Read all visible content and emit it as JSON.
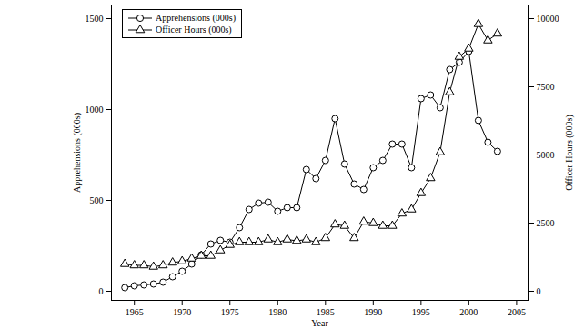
{
  "chart_data": {
    "type": "line",
    "xlabel": "Year",
    "ylabel": "Apprehensions (000s)",
    "y2label": "Officer Hours (000s)",
    "x": [
      1964,
      1965,
      1966,
      1967,
      1968,
      1969,
      1970,
      1971,
      1972,
      1973,
      1974,
      1975,
      1976,
      1977,
      1978,
      1979,
      1980,
      1981,
      1982,
      1983,
      1984,
      1985,
      1986,
      1987,
      1988,
      1989,
      1990,
      1991,
      1992,
      1993,
      1994,
      1995,
      1996,
      1997,
      1998,
      1999,
      2000,
      2001,
      2002,
      2003
    ],
    "xlim": [
      1962.6,
      2006.2
    ],
    "xticks": [
      1965,
      1970,
      1975,
      1980,
      1985,
      1990,
      1995,
      2000,
      2005
    ],
    "ylim": [
      -50,
      1575
    ],
    "yticks": [
      0,
      500,
      1000,
      1500
    ],
    "y2lim": [
      -333,
      10500
    ],
    "y2ticks": [
      0,
      2500,
      5000,
      7500,
      10000
    ],
    "legend": "upper left",
    "series": [
      {
        "name": "Apprehensions (000s)",
        "color": "#000000",
        "marker": "circle",
        "line_style": "solid",
        "values": [
          20,
          30,
          35,
          40,
          50,
          80,
          110,
          150,
          200,
          260,
          280,
          270,
          350,
          450,
          485,
          490,
          440,
          460,
          460,
          670,
          620,
          720,
          950,
          700,
          590,
          560,
          680,
          720,
          810,
          810,
          680,
          1060,
          1080,
          1010,
          1220,
          1260,
          1320,
          940,
          820,
          770
        ]
      },
      {
        "name": "Officer Hours (000s)",
        "color": "#000000",
        "marker": "triangle",
        "line_style": "solid",
        "axis": "y2",
        "values": [
          1000,
          950,
          950,
          900,
          950,
          1050,
          1100,
          1200,
          1300,
          1300,
          1500,
          1700,
          1800,
          1800,
          1800,
          1900,
          1800,
          1900,
          1850,
          1900,
          1800,
          1950,
          2450,
          2400,
          1950,
          2550,
          2500,
          2400,
          2400,
          2850,
          3000,
          3600,
          4150,
          5100,
          7300,
          8600,
          8900,
          9800,
          9200,
          9450
        ]
      }
    ]
  }
}
